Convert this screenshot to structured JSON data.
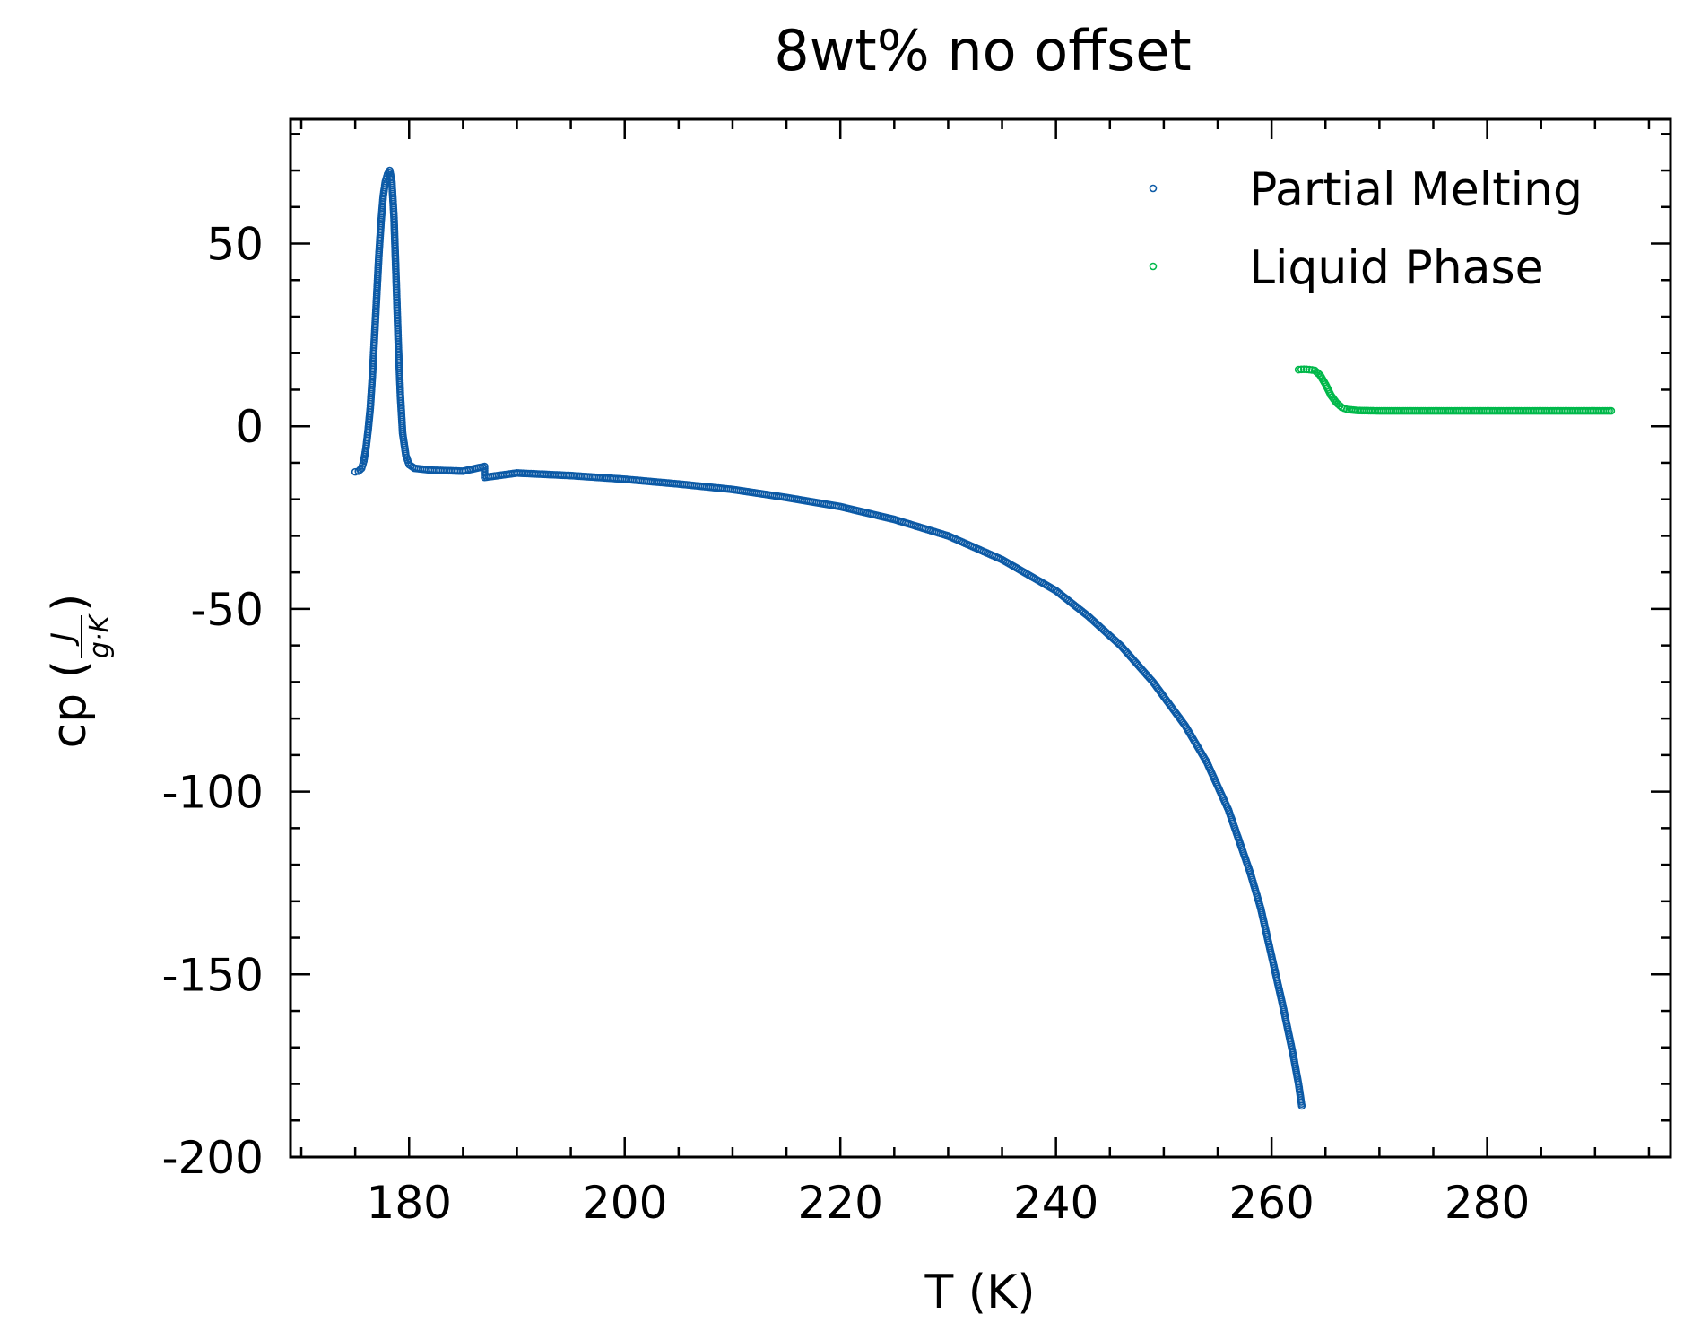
{
  "chart_data": {
    "type": "scatter",
    "title": "8wt% no offset",
    "xlabel": "T (K)",
    "ylabel": {
      "prefix": "cp (",
      "numerator": "J",
      "denominator": "g·K",
      "suffix": ")"
    },
    "xlim": [
      169,
      297
    ],
    "ylim": [
      -200,
      84
    ],
    "x_ticks": [
      180,
      200,
      220,
      240,
      260,
      280
    ],
    "x_tick_labels": [
      "180",
      "200",
      "220",
      "240",
      "260",
      "280"
    ],
    "y_ticks": [
      -200,
      -150,
      -100,
      -50,
      0,
      50
    ],
    "y_tick_labels": [
      "-200",
      "-150",
      "-100",
      "-50",
      "0",
      "50"
    ],
    "x_minor_step": 5,
    "y_minor_step": 10,
    "grid": false,
    "legend_position": "top-right",
    "series": [
      {
        "name": "Partial Melting",
        "color": "#0c5aa6",
        "marker": "open-circle",
        "points": [
          [
            175.0,
            -12.5
          ],
          [
            175.3,
            -12.3
          ],
          [
            175.6,
            -11.5
          ],
          [
            175.8,
            -9.5
          ],
          [
            176.0,
            -6
          ],
          [
            176.2,
            -1
          ],
          [
            176.4,
            5
          ],
          [
            176.6,
            14
          ],
          [
            176.8,
            25
          ],
          [
            177.0,
            36
          ],
          [
            177.2,
            47
          ],
          [
            177.4,
            56
          ],
          [
            177.6,
            63
          ],
          [
            177.8,
            67
          ],
          [
            178.0,
            69
          ],
          [
            178.2,
            70
          ],
          [
            178.4,
            67
          ],
          [
            178.6,
            57
          ],
          [
            178.8,
            40
          ],
          [
            179.0,
            22
          ],
          [
            179.2,
            8
          ],
          [
            179.4,
            -2
          ],
          [
            179.7,
            -8
          ],
          [
            180.0,
            -10.5
          ],
          [
            180.5,
            -11.5
          ],
          [
            182,
            -12
          ],
          [
            185,
            -12.3
          ],
          [
            187,
            -11
          ],
          [
            187,
            -14
          ],
          [
            190,
            -12.8
          ],
          [
            195,
            -13.5
          ],
          [
            200,
            -14.5
          ],
          [
            205,
            -15.8
          ],
          [
            210,
            -17.3
          ],
          [
            215,
            -19.5
          ],
          [
            220,
            -22
          ],
          [
            225,
            -25.5
          ],
          [
            230,
            -30
          ],
          [
            235,
            -36.5
          ],
          [
            240,
            -45
          ],
          [
            243,
            -52
          ],
          [
            246,
            -60
          ],
          [
            249,
            -70
          ],
          [
            252,
            -82
          ],
          [
            254,
            -92
          ],
          [
            256,
            -105
          ],
          [
            258,
            -122
          ],
          [
            259,
            -132
          ],
          [
            260,
            -145
          ],
          [
            261,
            -158
          ],
          [
            262,
            -172
          ],
          [
            262.5,
            -180
          ],
          [
            262.8,
            -186
          ]
        ]
      },
      {
        "name": "Liquid Phase",
        "color": "#00b84a",
        "marker": "open-circle",
        "points": [
          [
            262.5,
            15.5
          ],
          [
            263,
            15.6
          ],
          [
            263.5,
            15.5
          ],
          [
            264,
            15.3
          ],
          [
            264.5,
            14
          ],
          [
            265,
            11.5
          ],
          [
            265.5,
            8.5
          ],
          [
            266,
            6.5
          ],
          [
            266.5,
            5.2
          ],
          [
            267,
            4.6
          ],
          [
            268,
            4.3
          ],
          [
            270,
            4.2
          ],
          [
            275,
            4.2
          ],
          [
            280,
            4.2
          ],
          [
            285,
            4.2
          ],
          [
            290,
            4.2
          ],
          [
            291.5,
            4.2
          ]
        ]
      }
    ]
  }
}
